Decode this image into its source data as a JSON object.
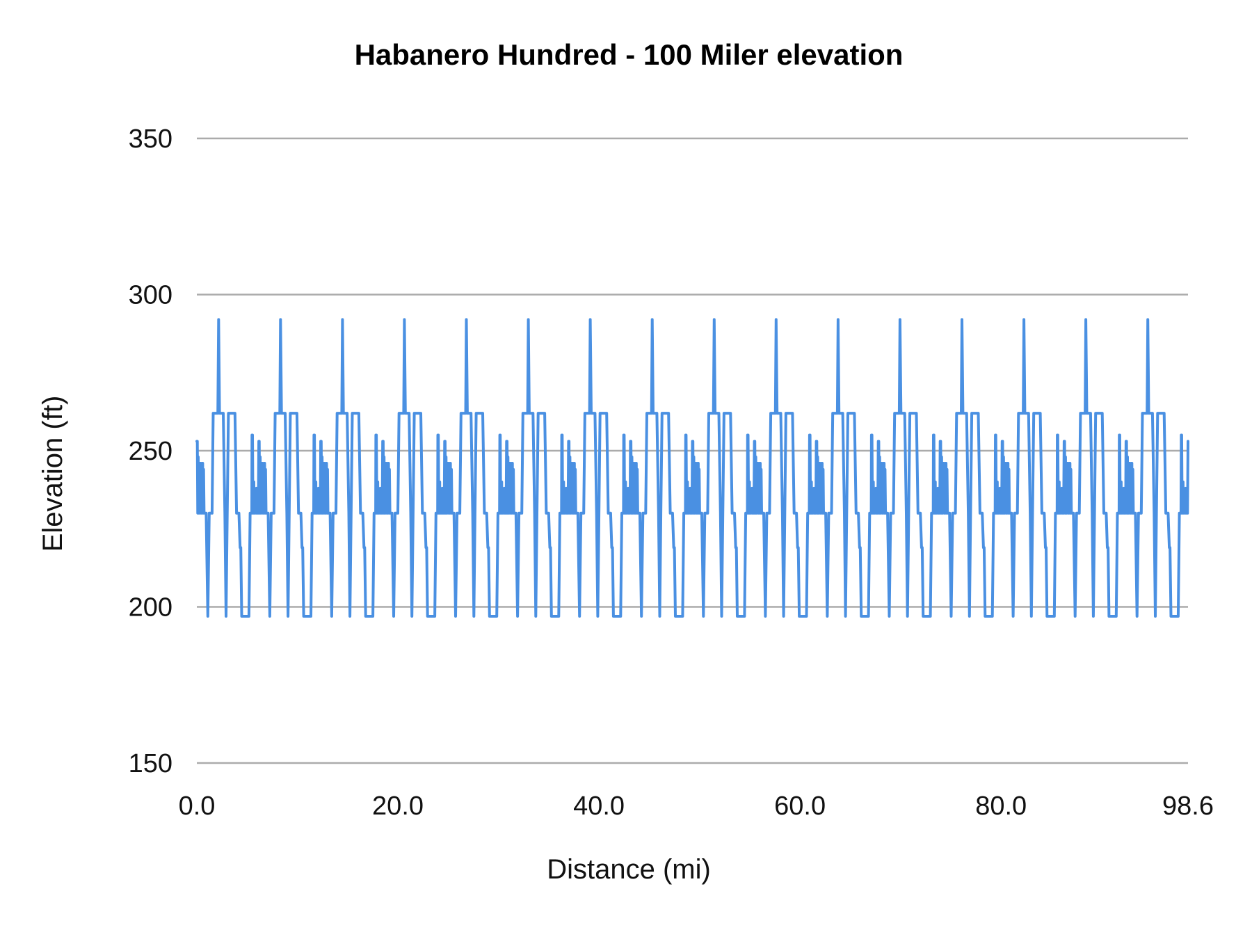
{
  "chart_data": {
    "type": "line",
    "title": "Habanero Hundred - 100 Miler elevation",
    "xlabel": "Distance (mi)",
    "ylabel": "Elevation (ft)",
    "xlim": [
      0,
      98.6
    ],
    "ylim": [
      150,
      350
    ],
    "x_ticks": [
      "0.0",
      "20.0",
      "40.0",
      "60.0",
      "80.0",
      "98.6"
    ],
    "x_tick_values": [
      0,
      20,
      40,
      60,
      80,
      98.6
    ],
    "y_ticks": [
      150,
      200,
      250,
      300,
      350
    ],
    "grid": "horizontal",
    "legend": "none",
    "colors": {
      "series": "#4a90e2",
      "grid": "#ababab"
    },
    "laps": 16,
    "lap_length_mi": 6.1625,
    "lap_profile": {
      "offset_mi": [
        0.0,
        0.047,
        0.093,
        0.14,
        0.163,
        0.209,
        0.233,
        0.302,
        0.372,
        0.395,
        0.442,
        0.465,
        0.535,
        0.581,
        0.605,
        0.674,
        0.721,
        0.93,
        1.093,
        1.233,
        1.512,
        1.628,
        2.093,
        2.163,
        2.256,
        2.628,
        2.791,
        2.907,
        3.023,
        3.139,
        3.791,
        3.953,
        4.186,
        4.302,
        4.372,
        4.465,
        5.186,
        5.302,
        5.465,
        5.488,
        5.535,
        5.581,
        5.674,
        5.698,
        5.791,
        5.814,
        5.93,
        5.953,
        6.116
      ],
      "elevation_ft": [
        253,
        253,
        230,
        248,
        230,
        246,
        230,
        246,
        246,
        230,
        240,
        230,
        246,
        246,
        230,
        244,
        230,
        230,
        197,
        230,
        230,
        262,
        262,
        292,
        262,
        262,
        230,
        197,
        230,
        262,
        262,
        230,
        230,
        219,
        219,
        197,
        197,
        230,
        230,
        255,
        255,
        230,
        240,
        230,
        236,
        230,
        238,
        230,
        230
      ]
    },
    "end_point": {
      "x": 98.6,
      "y": 253
    }
  }
}
